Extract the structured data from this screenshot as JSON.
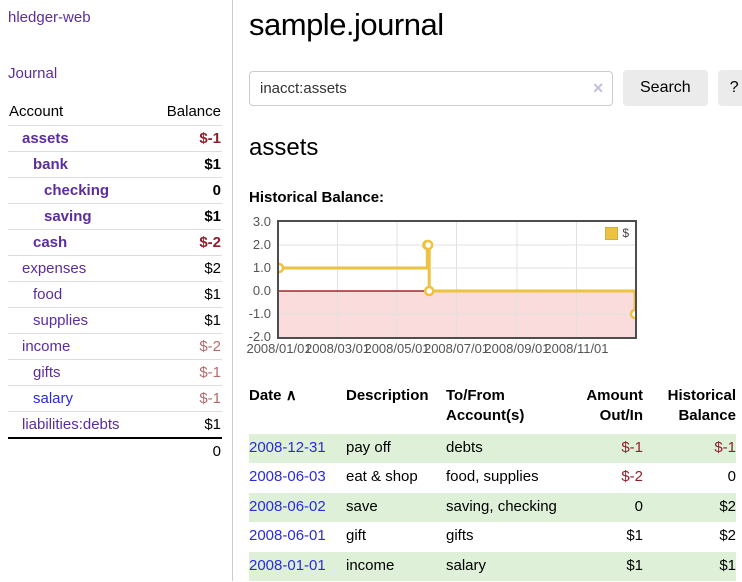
{
  "app": {
    "title": "hledger-web"
  },
  "colors": {
    "link_purple": "#5b2d9f",
    "link_blue": "#2b2bd8",
    "negative_strong": "#8f1f2c",
    "negative_soft": "#b56b6b",
    "row_stripe_green": "#dff0d8"
  },
  "sidebar": {
    "journal_label": "Journal",
    "account_header": "Account",
    "balance_header": "Balance",
    "accounts": [
      {
        "name": "assets",
        "indent": 1,
        "bold": true,
        "link_color": "purple",
        "balance": "$-1",
        "balance_color": "neg"
      },
      {
        "name": "bank",
        "indent": 2,
        "bold": true,
        "link_color": "purple",
        "balance": "$1",
        "balance_color": "pos"
      },
      {
        "name": "checking",
        "indent": 3,
        "bold": true,
        "link_color": "purple",
        "balance": "0",
        "balance_color": "pos"
      },
      {
        "name": "saving",
        "indent": 3,
        "bold": true,
        "link_color": "purple",
        "balance": "$1",
        "balance_color": "pos"
      },
      {
        "name": "cash",
        "indent": 2,
        "bold": true,
        "link_color": "purple",
        "balance": "$-2",
        "balance_color": "neg"
      },
      {
        "name": "expenses",
        "indent": 1,
        "bold": false,
        "link_color": "purple",
        "balance": "$2",
        "balance_color": "pos"
      },
      {
        "name": "food",
        "indent": 2,
        "bold": false,
        "link_color": "purple",
        "balance": "$1",
        "balance_color": "pos"
      },
      {
        "name": "supplies",
        "indent": 2,
        "bold": false,
        "link_color": "purple",
        "balance": "$1",
        "balance_color": "pos"
      },
      {
        "name": "income",
        "indent": 1,
        "bold": false,
        "link_color": "purple",
        "balance": "$-2",
        "balance_color": "neg_soft"
      },
      {
        "name": "gifts",
        "indent": 2,
        "bold": false,
        "link_color": "purple",
        "balance": "$-1",
        "balance_color": "neg_soft"
      },
      {
        "name": "salary",
        "indent": 2,
        "bold": false,
        "link_color": "blue",
        "balance": "$-1",
        "balance_color": "neg_soft"
      },
      {
        "name": "liabilities:debts",
        "indent": 1,
        "bold": false,
        "link_color": "purple",
        "balance": "$1",
        "balance_color": "pos"
      }
    ],
    "total": "0"
  },
  "header": {
    "title": "sample.journal"
  },
  "search": {
    "value": "inacct:assets",
    "clear_icon": "✕",
    "button_label": "Search",
    "help_label": "?"
  },
  "account_page": {
    "heading": "assets",
    "chart_title": "Historical Balance:"
  },
  "chart_data": {
    "type": "line",
    "title": "Historical Balance",
    "step": true,
    "legend": {
      "label": "$",
      "position": "top-right"
    },
    "x": [
      "2008-01-01",
      "2008-06-01",
      "2008-06-02",
      "2008-06-03",
      "2008-12-31"
    ],
    "y": [
      1,
      2,
      2,
      0,
      -1
    ],
    "xrange": [
      "2008-01-01",
      "2008-12-31"
    ],
    "ylim": [
      -2,
      3
    ],
    "yticks": [
      "3.0",
      "2.0",
      "1.0",
      "0.0",
      "-1.0",
      "-2.0"
    ],
    "xticks": [
      "2008/01/01",
      "2008/03/01",
      "2008/05/01",
      "2008/07/01",
      "2008/09/01",
      "2008/11/01"
    ],
    "grid": true,
    "colors": {
      "series": "#edc240",
      "marker_fill": "#ffffff",
      "negative_fill": "#fbdcdc",
      "zero_line": "#8b0000",
      "grid": "#e2e2e2",
      "border": "#4d4d4d",
      "tick_text": "#545454"
    }
  },
  "register": {
    "headers": {
      "date": "Date",
      "sort_icon": "∧",
      "description": "Description",
      "accounts": "To/From Account(s)",
      "amount": "Amount Out/In",
      "balance": "Historical Balance"
    },
    "rows": [
      {
        "date": "2008-12-31",
        "description": "pay off",
        "accounts": "debts",
        "amount": "$-1",
        "balance": "$-1"
      },
      {
        "date": "2008-06-03",
        "description": "eat & shop",
        "accounts": "food, supplies",
        "amount": "$-2",
        "balance": "0"
      },
      {
        "date": "2008-06-02",
        "description": "save",
        "accounts": "saving, checking",
        "amount": "0",
        "balance": "$2"
      },
      {
        "date": "2008-06-01",
        "description": "gift",
        "accounts": "gifts",
        "amount": "$1",
        "balance": "$2"
      },
      {
        "date": "2008-01-01",
        "description": "income",
        "accounts": "salary",
        "amount": "$1",
        "balance": "$1"
      }
    ]
  }
}
